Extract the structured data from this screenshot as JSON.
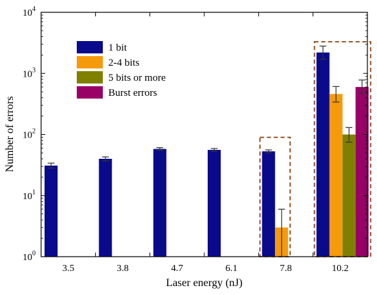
{
  "chart_data": {
    "type": "bar",
    "title": "",
    "xlabel": "Laser energy (nJ)",
    "ylabel": "Number of errors",
    "y_scale": "log",
    "ylim": [
      1,
      10000
    ],
    "y_ticks": [
      {
        "base": "10",
        "exp": "0"
      },
      {
        "base": "10",
        "exp": "1"
      },
      {
        "base": "10",
        "exp": "2"
      },
      {
        "base": "10",
        "exp": "3"
      },
      {
        "base": "10",
        "exp": "4"
      }
    ],
    "categories": [
      "3.5",
      "3.8",
      "4.7",
      "6.1",
      "7.8",
      "10.2"
    ],
    "legend_position": "upper-left",
    "grid": false,
    "series": [
      {
        "name": "1 bit",
        "color": "#0a0a8c",
        "values": [
          31,
          40,
          58,
          56,
          53,
          2200
        ],
        "err_low": [
          3,
          3,
          3,
          3,
          3,
          500
        ],
        "err_high": [
          3,
          3,
          3,
          3,
          3,
          600
        ]
      },
      {
        "name": "2-4 bits",
        "color": "#f59a0a",
        "values": [
          null,
          null,
          null,
          null,
          3,
          460
        ],
        "err_low": [
          null,
          null,
          null,
          null,
          2,
          120
        ],
        "err_high": [
          null,
          null,
          null,
          null,
          3,
          150
        ]
      },
      {
        "name": "5 bits or more",
        "color": "#808000",
        "values": [
          null,
          null,
          null,
          null,
          null,
          100
        ],
        "err_low": [
          null,
          null,
          null,
          null,
          null,
          25
        ],
        "err_high": [
          null,
          null,
          null,
          null,
          null,
          30
        ]
      },
      {
        "name": "Burst errors",
        "color": "#990066",
        "values": [
          null,
          null,
          null,
          null,
          null,
          600
        ],
        "err_low": [
          null,
          null,
          null,
          null,
          null,
          130
        ],
        "err_high": [
          null,
          null,
          null,
          null,
          null,
          180
        ]
      }
    ],
    "highlight_boxes": [
      {
        "category": "7.8",
        "y_top": 90,
        "color": "#8B4513"
      },
      {
        "category": "10.2",
        "y_top": 3300,
        "color": "#8B4513"
      }
    ]
  }
}
